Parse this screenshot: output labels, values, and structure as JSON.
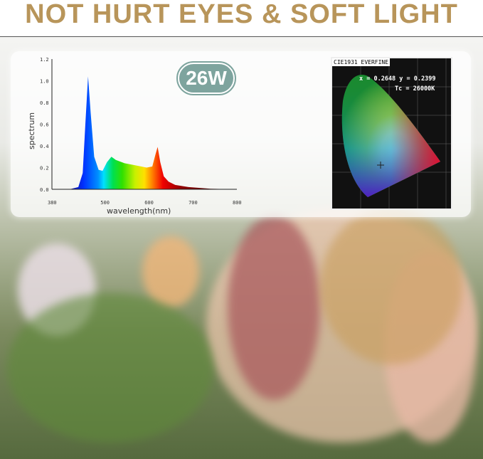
{
  "headline": "NOT HURT EYES & SOFT LIGHT",
  "badge": "26W",
  "cie": {
    "title": "CIE1931 EVERFINE",
    "coords": "x = 0.2648 y = 0.2399",
    "tc": "Tc = 26000K"
  },
  "chart_data": {
    "type": "area",
    "xlabel": "wavelength(nm)",
    "ylabel": "spectrum",
    "xlim": [
      380,
      800
    ],
    "ylim": [
      0,
      1.2
    ],
    "xticks": [
      "380",
      "500",
      "600",
      "700",
      "800"
    ],
    "yticks": [
      "0.0",
      "0.2",
      "0.4",
      "0.6",
      "0.8",
      "1.0",
      "1.2"
    ],
    "grid": false,
    "x": [
      420,
      440,
      450,
      456,
      462,
      468,
      476,
      486,
      495,
      505,
      515,
      525,
      545,
      570,
      595,
      608,
      615,
      620,
      626,
      634,
      645,
      660,
      690,
      740,
      800
    ],
    "y": [
      0,
      0.02,
      0.15,
      0.6,
      1.04,
      0.7,
      0.3,
      0.18,
      0.17,
      0.25,
      0.3,
      0.27,
      0.24,
      0.22,
      0.2,
      0.21,
      0.32,
      0.39,
      0.25,
      0.12,
      0.07,
      0.04,
      0.02,
      0.005,
      0
    ]
  }
}
